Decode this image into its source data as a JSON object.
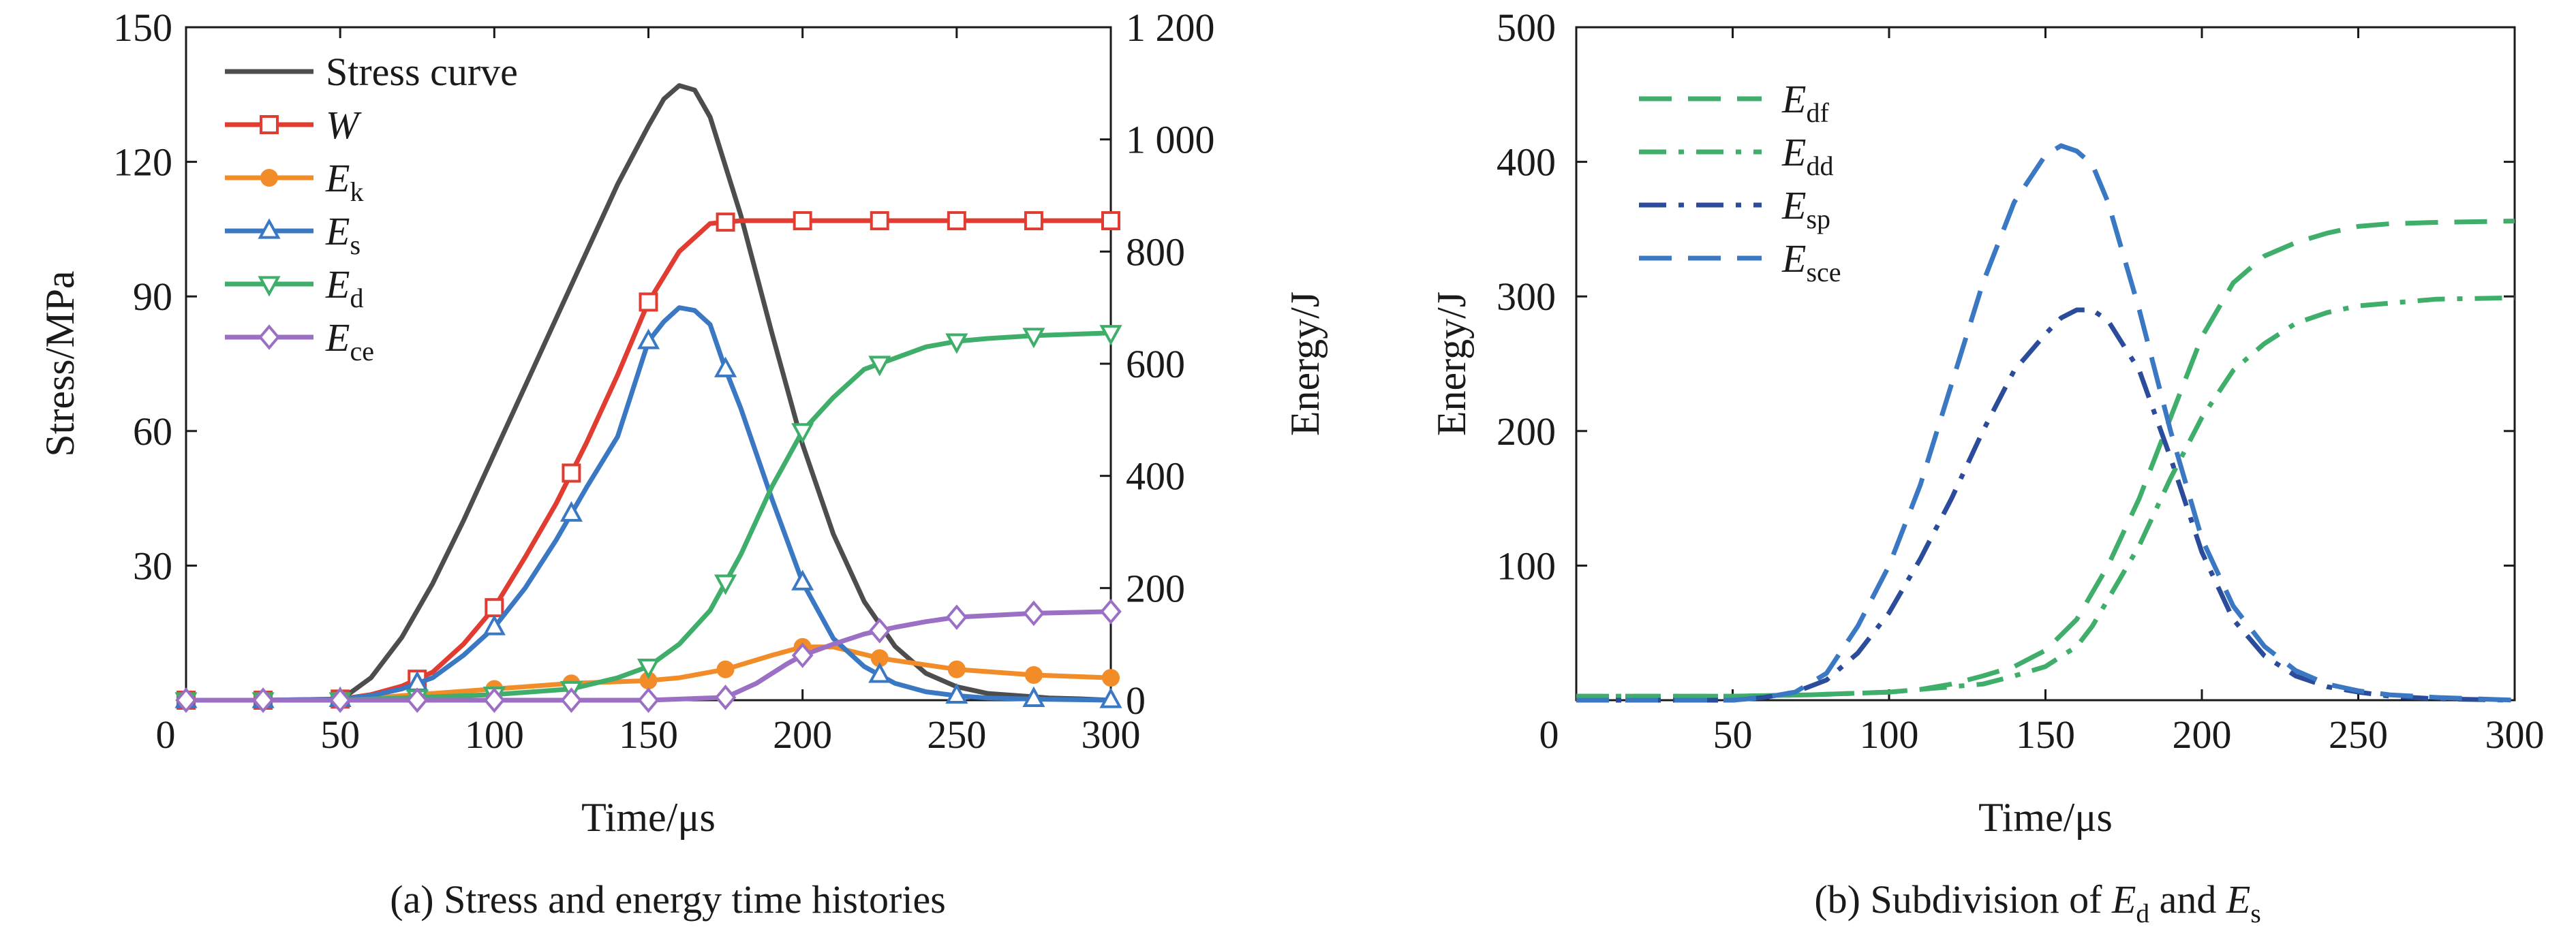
{
  "chart_data": [
    {
      "type": "line",
      "caption": "(a) Stress and energy time histories",
      "xlabel": "Time/μs",
      "ylabel": "Stress/MPa",
      "y2label": "Energy/J",
      "xlim": [
        0,
        300
      ],
      "ylim": [
        0,
        150
      ],
      "y2lim": [
        0,
        1200
      ],
      "xticks": [
        "0",
        "50",
        "100",
        "150",
        "200",
        "250",
        "300"
      ],
      "yticks": [
        "30",
        "60",
        "90",
        "120",
        "150"
      ],
      "y2ticks": [
        "0",
        "200",
        "400",
        "600",
        "800",
        "1 000",
        "1 200"
      ],
      "legend_position": "top-left",
      "series": [
        {
          "name": "Stress curve",
          "axis": "left",
          "color": "#4d4d4d",
          "marker": "none",
          "x": [
            0,
            50,
            60,
            70,
            80,
            90,
            100,
            110,
            120,
            130,
            140,
            150,
            155,
            160,
            165,
            170,
            180,
            190,
            200,
            210,
            220,
            230,
            240,
            250,
            260,
            270,
            280,
            290,
            300
          ],
          "y": [
            0,
            0,
            5,
            14,
            26,
            40,
            55,
            70,
            85,
            100,
            115,
            128,
            134,
            137,
            136,
            130,
            108,
            82,
            57,
            37,
            22,
            12,
            6,
            3,
            1.5,
            1,
            0.5,
            0.3,
            0
          ]
        },
        {
          "name": "W",
          "axis": "right",
          "color": "#e03c31",
          "marker": "square",
          "x": [
            0,
            25,
            50,
            60,
            70,
            80,
            90,
            100,
            110,
            120,
            130,
            140,
            150,
            160,
            170,
            180,
            200,
            225,
            250,
            275,
            300
          ],
          "y": [
            0,
            0,
            2,
            10,
            25,
            50,
            100,
            165,
            255,
            350,
            460,
            580,
            710,
            800,
            850,
            855,
            855,
            855,
            855,
            855,
            855
          ]
        },
        {
          "name": "E_k",
          "axis": "right",
          "color": "#f28c28",
          "marker": "circle",
          "x": [
            0,
            25,
            50,
            75,
            100,
            125,
            150,
            160,
            175,
            190,
            200,
            210,
            225,
            250,
            275,
            300
          ],
          "y": [
            0,
            0,
            0,
            10,
            20,
            30,
            35,
            40,
            55,
            80,
            95,
            95,
            75,
            55,
            45,
            40
          ]
        },
        {
          "name": "E_s",
          "axis": "right",
          "color": "#3a78c3",
          "marker": "triangle-up",
          "x": [
            0,
            25,
            50,
            60,
            70,
            80,
            90,
            100,
            110,
            120,
            130,
            140,
            150,
            155,
            160,
            165,
            170,
            175,
            180,
            190,
            200,
            210,
            220,
            230,
            240,
            250,
            260,
            275,
            300
          ],
          "y": [
            0,
            0,
            2,
            8,
            20,
            40,
            80,
            130,
            200,
            285,
            380,
            470,
            640,
            675,
            700,
            695,
            670,
            590,
            520,
            360,
            210,
            110,
            60,
            30,
            15,
            8,
            4,
            2,
            0
          ]
        },
        {
          "name": "E_d",
          "axis": "right",
          "color": "#3fae6a",
          "marker": "triangle-down",
          "x": [
            0,
            25,
            50,
            75,
            100,
            125,
            140,
            150,
            160,
            170,
            175,
            180,
            190,
            200,
            210,
            220,
            230,
            240,
            250,
            260,
            275,
            300
          ],
          "y": [
            0,
            0,
            0,
            5,
            10,
            20,
            40,
            60,
            100,
            160,
            210,
            260,
            380,
            480,
            540,
            590,
            610,
            630,
            640,
            645,
            650,
            655
          ]
        },
        {
          "name": "E_ce",
          "axis": "right",
          "color": "#9b6fc3",
          "marker": "diamond",
          "x": [
            0,
            25,
            50,
            75,
            100,
            125,
            150,
            175,
            185,
            195,
            200,
            210,
            220,
            230,
            240,
            250,
            275,
            300
          ],
          "y": [
            0,
            0,
            0,
            0,
            0,
            0,
            0,
            5,
            30,
            65,
            80,
            100,
            118,
            130,
            140,
            148,
            155,
            158
          ]
        }
      ]
    },
    {
      "type": "line",
      "caption": "(b) Subdivision of E_d and E_s",
      "xlabel": "Time/μs",
      "ylabel": "Energy/J",
      "xlim": [
        0,
        300
      ],
      "ylim": [
        0,
        500
      ],
      "xticks": [
        "0",
        "50",
        "100",
        "150",
        "200",
        "250",
        "300"
      ],
      "yticks": [
        "100",
        "200",
        "300",
        "400",
        "500"
      ],
      "legend_position": "top-left",
      "series": [
        {
          "name": "E_df",
          "color": "#3fae6a",
          "dash": "dash",
          "x": [
            0,
            50,
            75,
            100,
            110,
            120,
            130,
            140,
            150,
            160,
            165,
            170,
            180,
            190,
            200,
            210,
            220,
            230,
            240,
            250,
            260,
            275,
            300
          ],
          "y": [
            3,
            3,
            4,
            6,
            8,
            12,
            18,
            25,
            37,
            60,
            80,
            100,
            150,
            210,
            270,
            310,
            330,
            340,
            347,
            352,
            354,
            355,
            356
          ]
        },
        {
          "name": "E_dd",
          "color": "#3fae6a",
          "dash": "dashdot",
          "x": [
            0,
            50,
            75,
            100,
            110,
            120,
            130,
            140,
            150,
            160,
            165,
            170,
            180,
            190,
            200,
            210,
            220,
            230,
            240,
            250,
            260,
            275,
            300
          ],
          "y": [
            3,
            3,
            4,
            6,
            8,
            10,
            12,
            18,
            25,
            40,
            55,
            75,
            115,
            165,
            210,
            245,
            265,
            280,
            288,
            293,
            295,
            298,
            299
          ]
        },
        {
          "name": "E_sp",
          "color": "#2b4c9b",
          "dash": "dashdot",
          "x": [
            0,
            50,
            60,
            70,
            80,
            90,
            100,
            110,
            120,
            130,
            140,
            150,
            155,
            160,
            165,
            170,
            180,
            190,
            200,
            210,
            220,
            230,
            240,
            250,
            260,
            275,
            300
          ],
          "y": [
            0,
            0,
            2,
            6,
            15,
            35,
            65,
            105,
            150,
            200,
            245,
            272,
            284,
            290,
            290,
            282,
            245,
            180,
            110,
            60,
            33,
            18,
            10,
            6,
            3,
            1,
            0
          ]
        },
        {
          "name": "E_sce",
          "color": "#3a78c3",
          "dash": "dash",
          "x": [
            0,
            50,
            60,
            70,
            80,
            90,
            100,
            110,
            120,
            130,
            140,
            150,
            155,
            160,
            165,
            170,
            180,
            190,
            200,
            210,
            220,
            230,
            240,
            250,
            260,
            275,
            300
          ],
          "y": [
            0,
            0,
            2,
            6,
            20,
            55,
            100,
            160,
            235,
            310,
            370,
            405,
            412,
            408,
            398,
            370,
            290,
            200,
            120,
            70,
            40,
            22,
            12,
            7,
            4,
            2,
            0
          ]
        }
      ]
    }
  ]
}
